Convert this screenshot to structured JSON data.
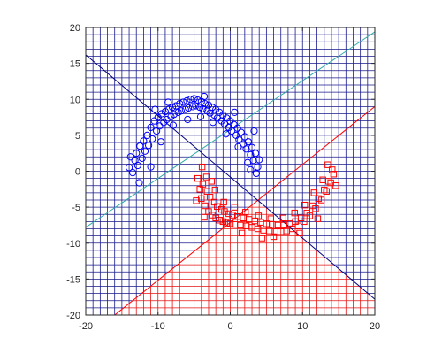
{
  "chart_data": {
    "type": "scatter",
    "xlim": [
      -20,
      20
    ],
    "ylim": [
      -20,
      20
    ],
    "xticks": [
      -20,
      -10,
      0,
      10,
      20
    ],
    "yticks": [
      -20,
      -15,
      -10,
      -5,
      0,
      5,
      10,
      15,
      20
    ],
    "grid": true,
    "region_grid_step": 1,
    "colors": {
      "class1_marker": "#0000ff",
      "class1_region_grid": "#1a1a8c",
      "class2_marker": "#ff0000",
      "class2_region_grid": "#e31414",
      "boundary_cyan": "#33aaaa",
      "boundary_red": "#ff0000",
      "boundary_navy": "#000080",
      "axis": "#262626"
    },
    "boundaries": [
      {
        "color_key": "boundary_cyan",
        "points": [
          [
            -20,
            -7.8
          ],
          [
            20,
            19.4
          ]
        ]
      },
      {
        "color_key": "boundary_red",
        "points": [
          [
            -16,
            -20
          ],
          [
            20,
            9
          ]
        ]
      },
      {
        "color_key": "boundary_navy",
        "points": [
          [
            -20,
            16.2
          ],
          [
            20,
            -17.8
          ]
        ]
      }
    ],
    "series": [
      {
        "marker": "circle",
        "color_key": "class1_marker",
        "points": [
          [
            -14,
            0.5
          ],
          [
            -13.5,
            -0.2
          ],
          [
            -13.2,
            1.5
          ],
          [
            -13,
            2.5
          ],
          [
            -12.8,
            0.8
          ],
          [
            -12.5,
            3.5
          ],
          [
            -12.2,
            1.8
          ],
          [
            -12,
            4.2
          ],
          [
            -11.8,
            2.8
          ],
          [
            -11.5,
            5
          ],
          [
            -11.3,
            3.6
          ],
          [
            -11,
            6.1
          ],
          [
            -10.8,
            4.5
          ],
          [
            -10.5,
            7
          ],
          [
            -10.2,
            5.6
          ],
          [
            -10,
            7.5
          ],
          [
            -9.8,
            6.3
          ],
          [
            -9.5,
            8
          ],
          [
            -9.2,
            6.8
          ],
          [
            -9,
            8.3
          ],
          [
            -8.8,
            7.2
          ],
          [
            -8.5,
            8.6
          ],
          [
            -8.2,
            7.6
          ],
          [
            -8,
            8.9
          ],
          [
            -7.8,
            7.9
          ],
          [
            -7.5,
            9.1
          ],
          [
            -7.2,
            8.2
          ],
          [
            -7,
            9.4
          ],
          [
            -6.8,
            8.4
          ],
          [
            -6.5,
            9.6
          ],
          [
            -6.2,
            8.6
          ],
          [
            -6,
            9.8
          ],
          [
            -5.8,
            8.8
          ],
          [
            -5.5,
            10
          ],
          [
            -5.2,
            9
          ],
          [
            -5,
            10.1
          ],
          [
            -4.8,
            9.1
          ],
          [
            -4.5,
            9.9
          ],
          [
            -4.2,
            8.9
          ],
          [
            -4,
            9.7
          ],
          [
            -3.8,
            8.7
          ],
          [
            -3.5,
            9.4
          ],
          [
            -3.2,
            8.4
          ],
          [
            -3,
            9.2
          ],
          [
            -2.8,
            8.1
          ],
          [
            -2.5,
            8.9
          ],
          [
            -2.2,
            7.8
          ],
          [
            -2,
            8.6
          ],
          [
            -1.8,
            7.4
          ],
          [
            -1.5,
            8.2
          ],
          [
            -1.2,
            7
          ],
          [
            -1,
            7.8
          ],
          [
            -0.8,
            6.6
          ],
          [
            -0.5,
            7.4
          ],
          [
            -0.2,
            6.1
          ],
          [
            0,
            7
          ],
          [
            0.2,
            5.6
          ],
          [
            0.5,
            6.5
          ],
          [
            0.8,
            5
          ],
          [
            1,
            6
          ],
          [
            1.2,
            4.4
          ],
          [
            1.5,
            5.4
          ],
          [
            1.8,
            3.8
          ],
          [
            2,
            4.8
          ],
          [
            2.2,
            3.1
          ],
          [
            2.5,
            4.1
          ],
          [
            2.8,
            2.3
          ],
          [
            3,
            3.3
          ],
          [
            3.2,
            1.5
          ],
          [
            3.5,
            2.5
          ],
          [
            3.8,
            0.6
          ],
          [
            4,
            1.6
          ],
          [
            3.6,
            -0.3
          ],
          [
            2.8,
            0.2
          ],
          [
            -12.6,
            -1.6
          ],
          [
            -11,
            0.6
          ],
          [
            -9.6,
            4.1
          ],
          [
            -7.9,
            6.4
          ],
          [
            -5.9,
            7.2
          ],
          [
            -4.1,
            7.6
          ],
          [
            -2.4,
            6.8
          ],
          [
            -0.6,
            5.2
          ],
          [
            1.1,
            3.4
          ],
          [
            2.4,
            1.2
          ],
          [
            -13.8,
            2
          ],
          [
            -8.6,
            9.6
          ],
          [
            -3.6,
            10.4
          ],
          [
            0.6,
            8.2
          ],
          [
            3.3,
            5.6
          ],
          [
            -10.4,
            8.6
          ]
        ]
      },
      {
        "marker": "square",
        "color_key": "class2_marker",
        "points": [
          [
            -4.5,
            -1
          ],
          [
            -4.2,
            -2.5
          ],
          [
            -4,
            -3.8
          ],
          [
            -3.8,
            -1.8
          ],
          [
            -3.5,
            -4.8
          ],
          [
            -3.2,
            -2.8
          ],
          [
            -3,
            -5.6
          ],
          [
            -2.8,
            -3.6
          ],
          [
            -2.5,
            -6.1
          ],
          [
            -2.2,
            -4.3
          ],
          [
            -2,
            -6.5
          ],
          [
            -1.8,
            -4.9
          ],
          [
            -1.5,
            -6.8
          ],
          [
            -1.2,
            -5.3
          ],
          [
            -1,
            -7
          ],
          [
            -0.8,
            -5.6
          ],
          [
            -0.5,
            -7.2
          ],
          [
            -0.2,
            -5.9
          ],
          [
            0,
            -7.3
          ],
          [
            0.3,
            -6.1
          ],
          [
            0.6,
            -7.4
          ],
          [
            1,
            -6.3
          ],
          [
            1.4,
            -7.5
          ],
          [
            1.8,
            -6.5
          ],
          [
            2.2,
            -7.6
          ],
          [
            2.6,
            -6.7
          ],
          [
            3,
            -7.8
          ],
          [
            3.4,
            -6.9
          ],
          [
            3.8,
            -8
          ],
          [
            4.2,
            -7.1
          ],
          [
            4.6,
            -8.2
          ],
          [
            5,
            -7.3
          ],
          [
            5.4,
            -8.3
          ],
          [
            5.8,
            -7.4
          ],
          [
            6.2,
            -8.4
          ],
          [
            6.6,
            -7.5
          ],
          [
            7,
            -8.4
          ],
          [
            7.4,
            -7.5
          ],
          [
            7.8,
            -8.3
          ],
          [
            8.2,
            -7.3
          ],
          [
            8.6,
            -8
          ],
          [
            9,
            -7
          ],
          [
            9.4,
            -7.6
          ],
          [
            9.8,
            -6.5
          ],
          [
            10.2,
            -7
          ],
          [
            10.6,
            -5.8
          ],
          [
            11,
            -6.2
          ],
          [
            11.4,
            -4.8
          ],
          [
            11.8,
            -5.2
          ],
          [
            12.2,
            -3.8
          ],
          [
            12.6,
            -4
          ],
          [
            13,
            -2.6
          ],
          [
            13.3,
            -2.8
          ],
          [
            13.6,
            -1.4
          ],
          [
            13.9,
            -1.6
          ],
          [
            14.1,
            0.2
          ],
          [
            14.3,
            -0.4
          ],
          [
            12.8,
            -1.2
          ],
          [
            11.6,
            -3
          ],
          [
            10.3,
            -4.7
          ],
          [
            8.9,
            -5.8
          ],
          [
            7.3,
            -6.5
          ],
          [
            5.6,
            -6.6
          ],
          [
            3.9,
            -6.2
          ],
          [
            2.1,
            -5.7
          ],
          [
            0.6,
            -5
          ],
          [
            -0.9,
            -4.3
          ],
          [
            -2.1,
            -2.6
          ],
          [
            -3.3,
            -0.8
          ],
          [
            -3.9,
            0.6
          ],
          [
            -2.6,
            -1.4
          ],
          [
            14.6,
            -2
          ],
          [
            12.1,
            -6.6
          ],
          [
            6,
            -9.1
          ],
          [
            1.6,
            -8.6
          ],
          [
            -3.6,
            -6.4
          ],
          [
            -4.7,
            -4.1
          ],
          [
            9.6,
            -8.6
          ],
          [
            4.4,
            -9.3
          ],
          [
            13.5,
            0.9
          ]
        ]
      }
    ]
  }
}
